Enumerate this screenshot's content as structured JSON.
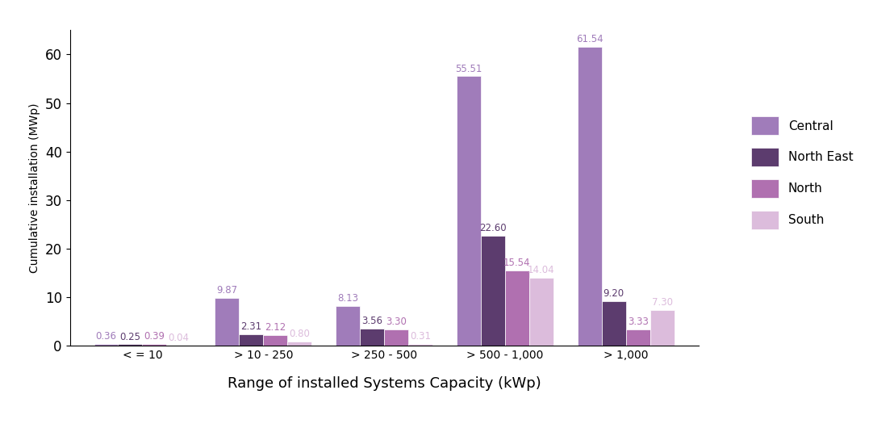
{
  "chart_data": {
    "type": "bar",
    "x_label": "Range of installed Systems Capacity (kWp)",
    "y_label": "Cumulative installation (MWp)",
    "categories": [
      "< = 10",
      "> 10 - 250",
      "> 250 - 500",
      "> 500 - 1,000",
      "> 1,000"
    ],
    "series": [
      {
        "name": "Central",
        "color": "#a07cba",
        "values": [
          0.36,
          9.87,
          8.13,
          55.51,
          61.54
        ]
      },
      {
        "name": "North East",
        "color": "#5c3c6e",
        "values": [
          0.25,
          2.31,
          3.56,
          22.6,
          9.2
        ]
      },
      {
        "name": "North",
        "color": "#b070b0",
        "values": [
          0.39,
          2.12,
          3.3,
          15.54,
          3.33
        ]
      },
      {
        "name": "South",
        "color": "#dcbcdc",
        "values": [
          0.04,
          0.8,
          0.31,
          14.04,
          7.3
        ]
      }
    ],
    "value_labels": [
      [
        "0.36",
        "9.87",
        "8.13",
        "55.51",
        "61.54"
      ],
      [
        "0.25",
        "2.31",
        "3.56",
        "22.60",
        "9.20"
      ],
      [
        "0.39",
        "2.12",
        "3.30",
        "15.54",
        "3.33"
      ],
      [
        "0.04",
        "0.80",
        "0.31",
        "14.04",
        "7.30"
      ]
    ],
    "ylim": [
      0,
      65
    ],
    "yticks": [
      0,
      10,
      20,
      30,
      40,
      50,
      60
    ],
    "grid": false,
    "legend": "center right",
    "data_labels": true
  }
}
